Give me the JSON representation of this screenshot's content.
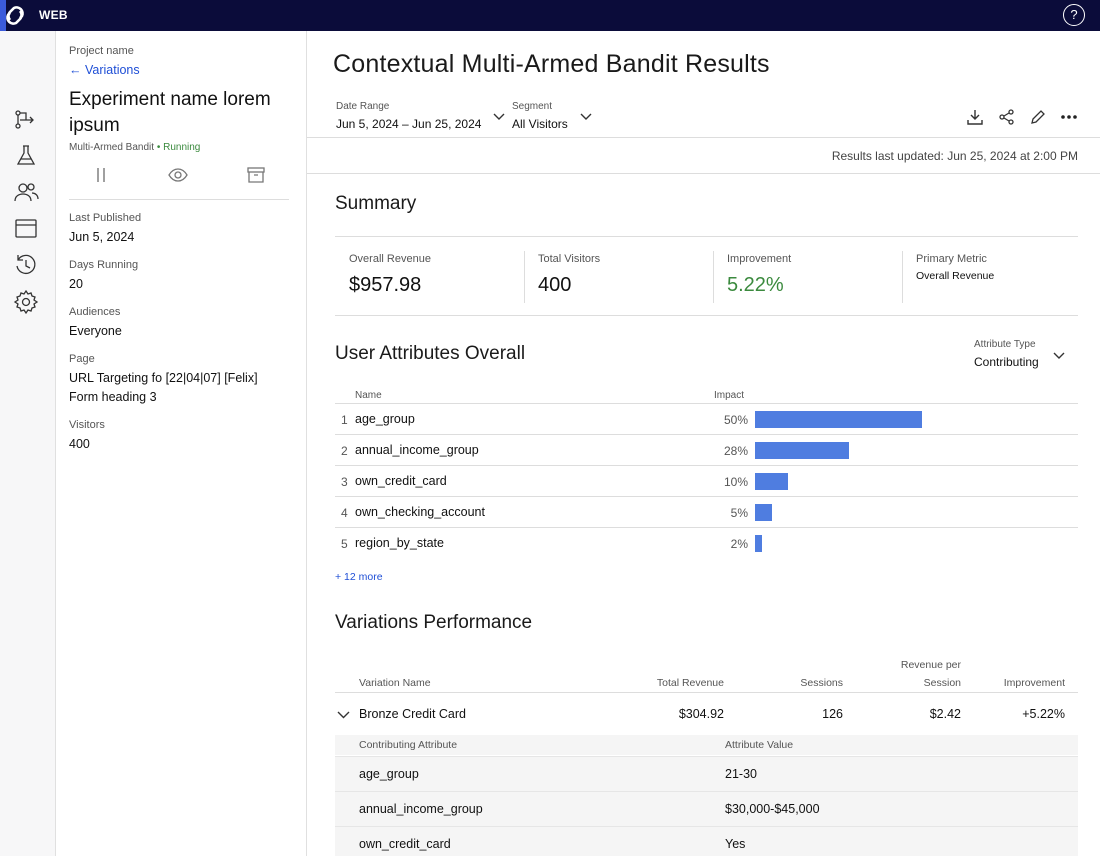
{
  "app": {
    "label": "WEB"
  },
  "sidebar_info": {
    "project_label": "Project name",
    "back_link": "← Variations",
    "experiment_title": "Experiment name lorem ipsum",
    "experiment_type": "Multi-Armed Bandit",
    "status": "Running",
    "fields": [
      {
        "label": "Last Published",
        "value": "Jun 5, 2024"
      },
      {
        "label": "Days Running",
        "value": "20"
      },
      {
        "label": "Audiences",
        "value": "Everyone"
      },
      {
        "label": "Page",
        "value": "URL Targeting fo [22|04|07] [Felix]",
        "value2": "Form heading 3"
      },
      {
        "label": "Visitors",
        "value": "400"
      }
    ]
  },
  "main": {
    "title": "Contextual Multi-Armed Bandit Results",
    "filters": {
      "date_range_label": "Date Range",
      "date_range_value": "Jun 5, 2024 – Jun 25, 2024",
      "segment_label": "Segment",
      "segment_value": "All Visitors"
    },
    "updated_text": "Results last updated: Jun 25, 2024 at 2:00 PM",
    "summary": {
      "title": "Summary",
      "cards": [
        {
          "label": "Overall Revenue",
          "value": "$957.98"
        },
        {
          "label": "Total Visitors",
          "value": "400"
        },
        {
          "label": "Improvement",
          "value": "5.22%"
        },
        {
          "label": "Primary Metric",
          "value": "Overall Revenue"
        }
      ]
    },
    "user_attributes": {
      "title": "User Attributes Overall",
      "type_label": "Attribute Type",
      "type_value": "Contributing",
      "columns": {
        "name": "Name",
        "impact": "Impact"
      },
      "rows": [
        {
          "rank": "1",
          "name": "age_group",
          "impact_label": "50%",
          "impact": 50
        },
        {
          "rank": "2",
          "name": "annual_income_group",
          "impact_label": "28%",
          "impact": 28
        },
        {
          "rank": "3",
          "name": "own_credit_card",
          "impact_label": "10%",
          "impact": 10
        },
        {
          "rank": "4",
          "name": "own_checking_account",
          "impact_label": "5%",
          "impact": 5
        },
        {
          "rank": "5",
          "name": "region_by_state",
          "impact_label": "2%",
          "impact": 2
        }
      ],
      "more_link": "+ 12 more"
    },
    "variations": {
      "title": "Variations Performance",
      "columns": {
        "name": "Variation Name",
        "revenue": "Total Revenue",
        "sessions": "Sessions",
        "rps_line1": "Revenue per",
        "rps_line2": "Session",
        "improvement": "Improvement"
      },
      "row": {
        "name": "Bronze Credit Card",
        "revenue": "$304.92",
        "sessions": "126",
        "rps": "$2.42",
        "improvement": "+5.22%"
      },
      "sub_columns": {
        "attribute": "Contributing Attribute",
        "value": "Attribute Value"
      },
      "sub_rows": [
        {
          "attribute": "age_group",
          "value": "21-30"
        },
        {
          "attribute": "annual_income_group",
          "value": "$30,000-$45,000"
        },
        {
          "attribute": "own_credit_card",
          "value": "Yes"
        }
      ]
    }
  },
  "colors": {
    "topbar": "#0b0c3a",
    "accent": "#1f4fd6",
    "bar": "#4f7de0",
    "positive": "#3b8a3e"
  },
  "icons": [
    "help-icon",
    "logo-icon",
    "flow-icon",
    "flask-icon",
    "users-icon",
    "window-icon",
    "history-icon",
    "gear-icon",
    "pause-icon",
    "eye-icon",
    "archive-icon",
    "download-icon",
    "share-icon",
    "edit-icon",
    "more-icon",
    "chevron-down-icon"
  ]
}
